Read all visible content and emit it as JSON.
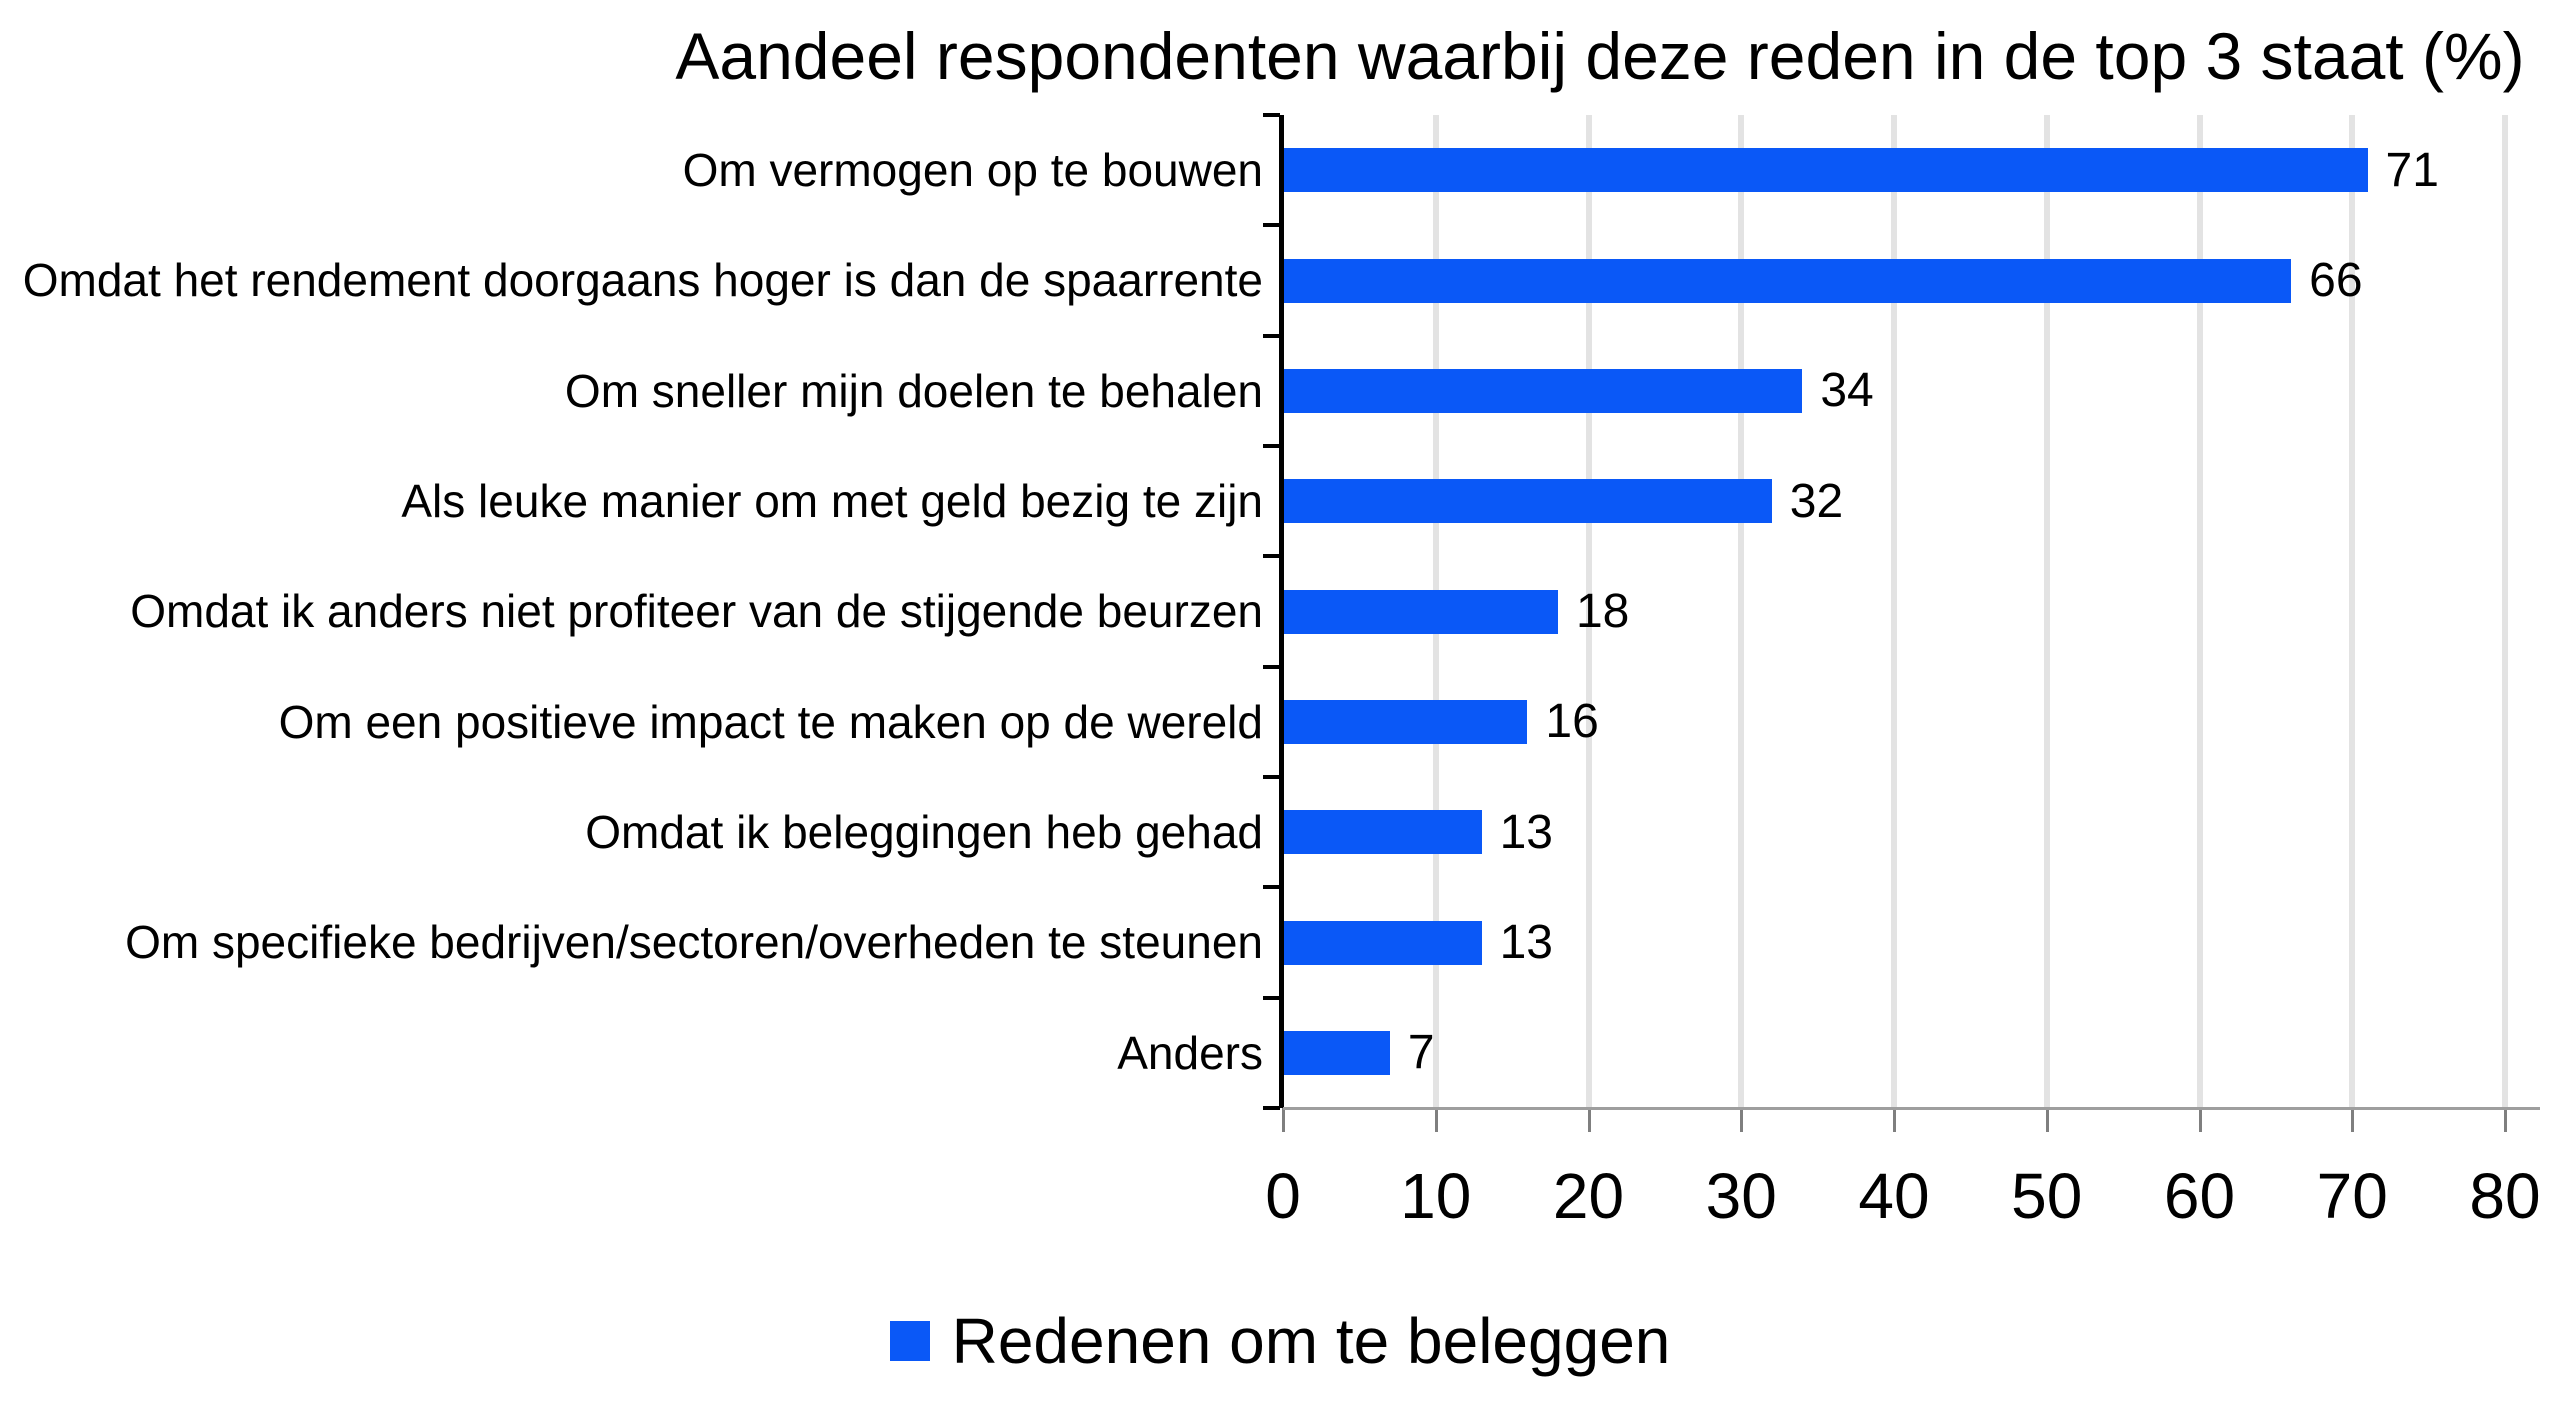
{
  "chart_data": {
    "type": "bar",
    "orientation": "horizontal",
    "title": "Aandeel respondenten waarbij deze reden in de top 3 staat (%)",
    "categories": [
      "Om vermogen op te bouwen",
      "Omdat het rendement doorgaans hoger is dan de spaarrente",
      "Om sneller mijn doelen te behalen",
      "Als leuke manier om met geld bezig te zijn",
      "Omdat ik anders niet profiteer van de stijgende beurzen",
      "Om een positieve impact te maken op de wereld",
      "Omdat ik beleggingen heb gehad",
      "Om specifieke bedrijven/sectoren/overheden te steunen",
      "Anders"
    ],
    "values": [
      71,
      66,
      34,
      32,
      18,
      16,
      13,
      13,
      7
    ],
    "series_name": "Redenen om te beleggen",
    "xlabel": "",
    "ylabel": "",
    "xlim": [
      0,
      80
    ],
    "x_ticks": [
      0,
      10,
      20,
      30,
      40,
      50,
      60,
      70,
      80
    ],
    "grid": true,
    "value_labels_shown": true,
    "legend_position": "bottom",
    "bar_color": "#0a58f7",
    "gridline_color": "#e3e3e3",
    "axis_line_color": "#9e9e9e",
    "tick_mark_color": "#7f7f7f"
  },
  "legend": {
    "label": "Redenen om te beleggen",
    "swatch_color": "#0a58f7"
  }
}
